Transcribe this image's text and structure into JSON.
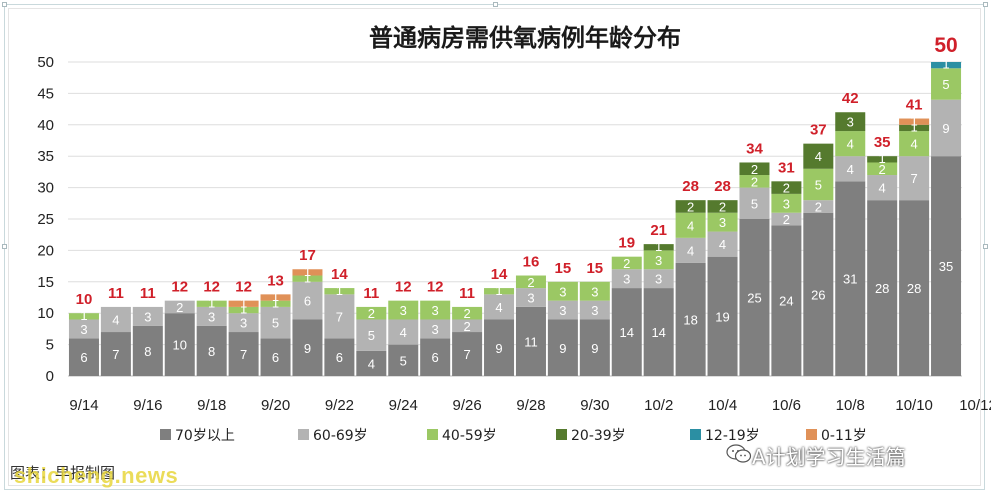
{
  "chart_data": {
    "type": "bar",
    "stacked": true,
    "title": "普通病房需供氧病例年龄分布",
    "ylim": [
      0,
      50
    ],
    "yticks": [
      0,
      5,
      10,
      15,
      20,
      25,
      30,
      35,
      40,
      45,
      50
    ],
    "categories": [
      "9/14",
      "9/15",
      "9/16",
      "9/17",
      "9/18",
      "9/19",
      "9/20",
      "9/21",
      "9/22",
      "9/23",
      "9/24",
      "9/25",
      "9/26",
      "9/27",
      "9/28",
      "9/29",
      "9/30",
      "10/1",
      "10/2",
      "10/3",
      "10/4",
      "10/5",
      "10/6",
      "10/7",
      "10/8",
      "10/9",
      "10/10",
      "10/11"
    ],
    "x_tick_labels": [
      "9/14",
      "9/16",
      "9/18",
      "9/20",
      "9/22",
      "9/24",
      "9/26",
      "9/28",
      "9/30",
      "10/2",
      "10/4",
      "10/6",
      "10/8",
      "10/10",
      "10/12"
    ],
    "legend_position": "bottom",
    "series": [
      {
        "name": "70岁以上",
        "color": "#7f7f7f",
        "label_color": "#ffffff",
        "values": [
          6,
          7,
          8,
          10,
          8,
          7,
          6,
          9,
          6,
          4,
          5,
          6,
          7,
          9,
          11,
          9,
          9,
          14,
          14,
          18,
          19,
          25,
          24,
          26,
          31,
          28,
          28,
          35
        ]
      },
      {
        "name": "60-69岁",
        "color": "#b3b3b3",
        "label_color": "#ffffff",
        "values": [
          3,
          4,
          3,
          2,
          3,
          3,
          5,
          6,
          7,
          5,
          4,
          3,
          2,
          4,
          3,
          3,
          3,
          3,
          3,
          4,
          4,
          5,
          2,
          2,
          4,
          4,
          7,
          9
        ]
      },
      {
        "name": "40-59岁",
        "color": "#9bc864",
        "label_color": "#ffffff",
        "values": [
          1,
          0,
          0,
          0,
          1,
          1,
          1,
          1,
          1,
          2,
          3,
          3,
          2,
          1,
          2,
          3,
          3,
          2,
          3,
          4,
          3,
          2,
          3,
          5,
          4,
          2,
          4,
          5
        ]
      },
      {
        "name": "20-39岁",
        "color": "#557a2e",
        "label_color": "#ffffff",
        "values": [
          0,
          0,
          0,
          0,
          0,
          0,
          0,
          0,
          0,
          0,
          0,
          0,
          0,
          0,
          0,
          0,
          0,
          0,
          1,
          2,
          2,
          2,
          2,
          4,
          3,
          1,
          1,
          0
        ]
      },
      {
        "name": "12-19岁",
        "color": "#2b8fa3",
        "label_color": "#ffffff",
        "values": [
          0,
          0,
          0,
          0,
          0,
          0,
          0,
          0,
          0,
          0,
          0,
          0,
          0,
          0,
          0,
          0,
          0,
          0,
          0,
          0,
          0,
          0,
          0,
          0,
          0,
          0,
          0,
          1
        ]
      },
      {
        "name": "0-11岁",
        "color": "#e09158",
        "label_color": "#ffffff",
        "values": [
          0,
          0,
          0,
          0,
          0,
          1,
          1,
          1,
          0,
          0,
          0,
          0,
          0,
          0,
          0,
          0,
          0,
          0,
          0,
          0,
          0,
          0,
          0,
          0,
          0,
          0,
          1,
          0
        ]
      }
    ],
    "totals": [
      10,
      11,
      11,
      12,
      12,
      12,
      13,
      17,
      14,
      11,
      12,
      12,
      11,
      14,
      16,
      15,
      15,
      19,
      21,
      28,
      28,
      34,
      31,
      37,
      42,
      35,
      41,
      50
    ],
    "legend_visible_labels": [
      "70岁以上",
      "60-69岁",
      "40-59岁",
      "20-39岁",
      "12-19岁",
      "0-11岁"
    ]
  },
  "footer": {
    "credit": "图表：早报制图",
    "watermark_left": "shicheng.news",
    "watermark_right": "A计划学习生活篇"
  }
}
